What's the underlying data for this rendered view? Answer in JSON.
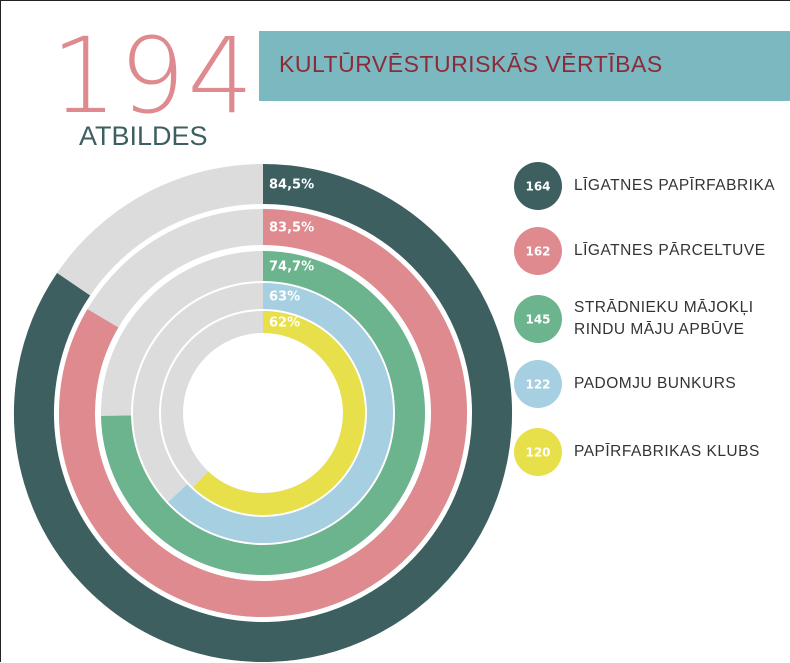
{
  "header": {
    "count": 194,
    "label": "ATBILDES",
    "title": "KULTŪRVĒSTURISKĀS VĒRTĪBAS"
  },
  "chart_data": {
    "type": "radial_bar",
    "categories": [
      "LĪGATNES PAPĪRFABRIKA",
      "LĪGATNES PĀRCELTUVE",
      "STRĀDNIEKU MĀJOKĻI\nRINDU MĀJU APBŪVE",
      "PADOMJU BUNKURS",
      "PAPĪRFABRIKAS KLUBS"
    ],
    "values": [
      84.5,
      83.5,
      74.7,
      63,
      62
    ],
    "value_labels": [
      "84,5%",
      "83,5%",
      "74,7%",
      "63%",
      "62%"
    ],
    "counts": [
      164,
      162,
      145,
      122,
      120
    ],
    "colors": [
      "#3d5f60",
      "#de8a8f",
      "#6bb48d",
      "#a6cfe2",
      "#e8e04a"
    ]
  }
}
